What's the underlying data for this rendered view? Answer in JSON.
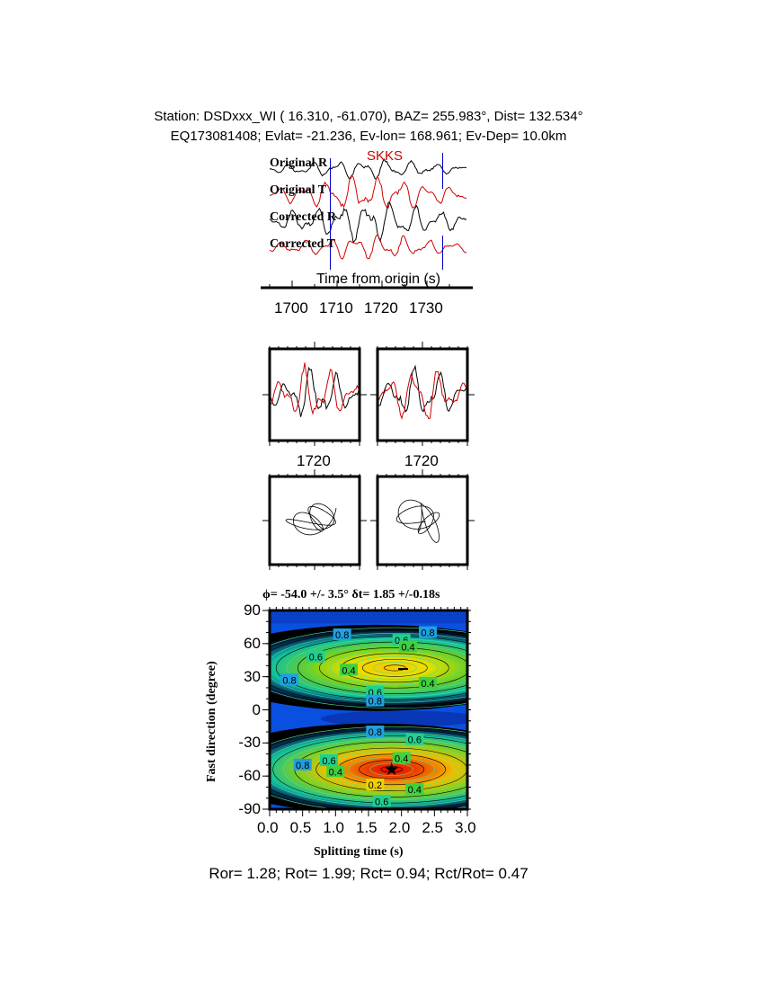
{
  "header": {
    "line1": "Station: DSDxxx_WI (  16.310,  -61.070), BAZ=  255.983°, Dist=  132.534°",
    "line2": "EQ173081408; Evlat= -21.236, Ev-lon= 168.961; Ev-Dep= 10.0km"
  },
  "footer": "Ror= 1.28; Rot= 1.99; Rct= 0.94; Rct/Rot= 0.47",
  "colors": {
    "radial": "#000000",
    "transverse": "#d00000",
    "marker": "#0000cc",
    "phase": "#d00000"
  },
  "chart_data": [
    {
      "type": "line",
      "phase_label": "SKKS",
      "trace_labels": [
        "Original R",
        "Original T",
        "Corrected R",
        "Corrected T"
      ],
      "xlabel": "Time from origin (s)",
      "x_ticks": [
        "1700",
        "1710",
        "1720",
        "1730"
      ],
      "xlim": [
        1695,
        1738
      ],
      "window_markers": [
        1708.5,
        1733.5
      ]
    },
    {
      "type": "line",
      "panel": "waveform-comparison",
      "x_ticks": [
        "1720",
        "1720"
      ]
    },
    {
      "type": "scatter",
      "panel": "particle-motion"
    },
    {
      "type": "heatmap",
      "title": "ϕ= -54.0 +/- 3.5° δt= 1.85 +/-0.18s",
      "xlabel": "Splitting time (s)",
      "ylabel": "Fast direction (degree)",
      "xlim": [
        0,
        3
      ],
      "ylim": [
        -90,
        90
      ],
      "x_ticks": [
        "0.0",
        "0.5",
        "1.0",
        "1.5",
        "2.0",
        "2.5",
        "3.0"
      ],
      "y_ticks": [
        "90",
        "60",
        "30",
        "0",
        "-30",
        "-60",
        "-90"
      ],
      "best_fit": {
        "phi": -54.0,
        "dt": 1.85
      },
      "contour_labels": [
        {
          "text": "0.8",
          "x": 1.1,
          "y": 68
        },
        {
          "text": "0.8",
          "x": 2.4,
          "y": 70
        },
        {
          "text": "0.6",
          "x": 2.0,
          "y": 63
        },
        {
          "text": "0.4",
          "x": 2.1,
          "y": 57
        },
        {
          "text": "0.6",
          "x": 0.7,
          "y": 48
        },
        {
          "text": "0.4",
          "x": 1.2,
          "y": 36
        },
        {
          "text": "0.8",
          "x": 0.3,
          "y": 27
        },
        {
          "text": "0.4",
          "x": 2.4,
          "y": 24
        },
        {
          "text": "0.6",
          "x": 1.6,
          "y": 16
        },
        {
          "text": "0.8",
          "x": 1.6,
          "y": 8
        },
        {
          "text": "0.8",
          "x": 1.6,
          "y": -20
        },
        {
          "text": "0.6",
          "x": 2.2,
          "y": -27
        },
        {
          "text": "0.6",
          "x": 0.9,
          "y": -46
        },
        {
          "text": "0.4",
          "x": 1.0,
          "y": -56
        },
        {
          "text": "0.8",
          "x": 0.5,
          "y": -50
        },
        {
          "text": "0.4",
          "x": 2.0,
          "y": -44
        },
        {
          "text": "0.2",
          "x": 1.6,
          "y": -68
        },
        {
          "text": "0.4",
          "x": 2.2,
          "y": -72
        },
        {
          "text": "0.6",
          "x": 1.7,
          "y": -83
        }
      ]
    }
  ]
}
